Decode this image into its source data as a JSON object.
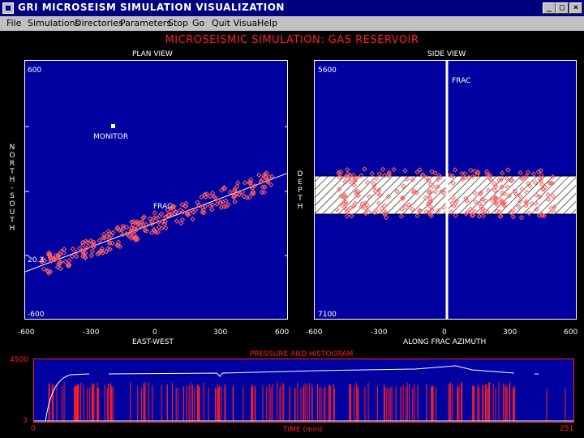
{
  "window": {
    "title": "GRI MICROSEISM SIMULATION VISUALIZATION",
    "controls": [
      "_",
      "□",
      "×"
    ]
  },
  "menu": [
    {
      "label": "File"
    },
    {
      "label": "Simulations"
    },
    {
      "label": "Directories"
    },
    {
      "label": "Parameters"
    },
    {
      "label": "Stop"
    },
    {
      "label": "Go"
    },
    {
      "label": "Quit Visual"
    },
    {
      "label": "Help"
    }
  ],
  "main_title": "MICROSEISMIC SIMULATION: GAS RESERVOIR",
  "plan_view": {
    "title": "PLAN VIEW",
    "y_top": "600",
    "y_mid": "20.3",
    "y_bottom": "-600",
    "ylabel_letters": [
      "N",
      "O",
      "R",
      "T",
      "H",
      "-",
      "S",
      "O",
      "U",
      "T",
      "H"
    ],
    "xlabel": "EAST-WEST",
    "x_ticks": [
      "-600",
      "-300",
      "0",
      "300",
      "600"
    ],
    "monitor_label": "MONITOR",
    "frac_label": "FRAC",
    "colors": {
      "bg": "#0000a0",
      "point": "#ff6060",
      "line": "#ffffff"
    }
  },
  "side_view": {
    "title": "SIDE VIEW",
    "y_top": "5600",
    "y_bottom": "7100",
    "ylabel_letters": [
      "D",
      "E",
      "P",
      "T",
      "H"
    ],
    "xlabel": "ALONG FRAC AZIMUTH",
    "x_ticks": [
      "-600",
      "-300",
      "0",
      "300",
      "600"
    ],
    "frac_label": "FRAC"
  },
  "pressure": {
    "title": "PRESSURE AND HISTOGRAM",
    "y_top": "4500",
    "y_bottom": "3",
    "x_start": "0",
    "x_end": "251",
    "xlabel": "TIME (min)",
    "colors": {
      "frame": "#ff2020",
      "bars": "#ff2020"
    }
  },
  "icons": {
    "app": "app-icon",
    "minimize": "minimize-icon",
    "maximize": "maximize-icon",
    "close": "close-icon"
  }
}
